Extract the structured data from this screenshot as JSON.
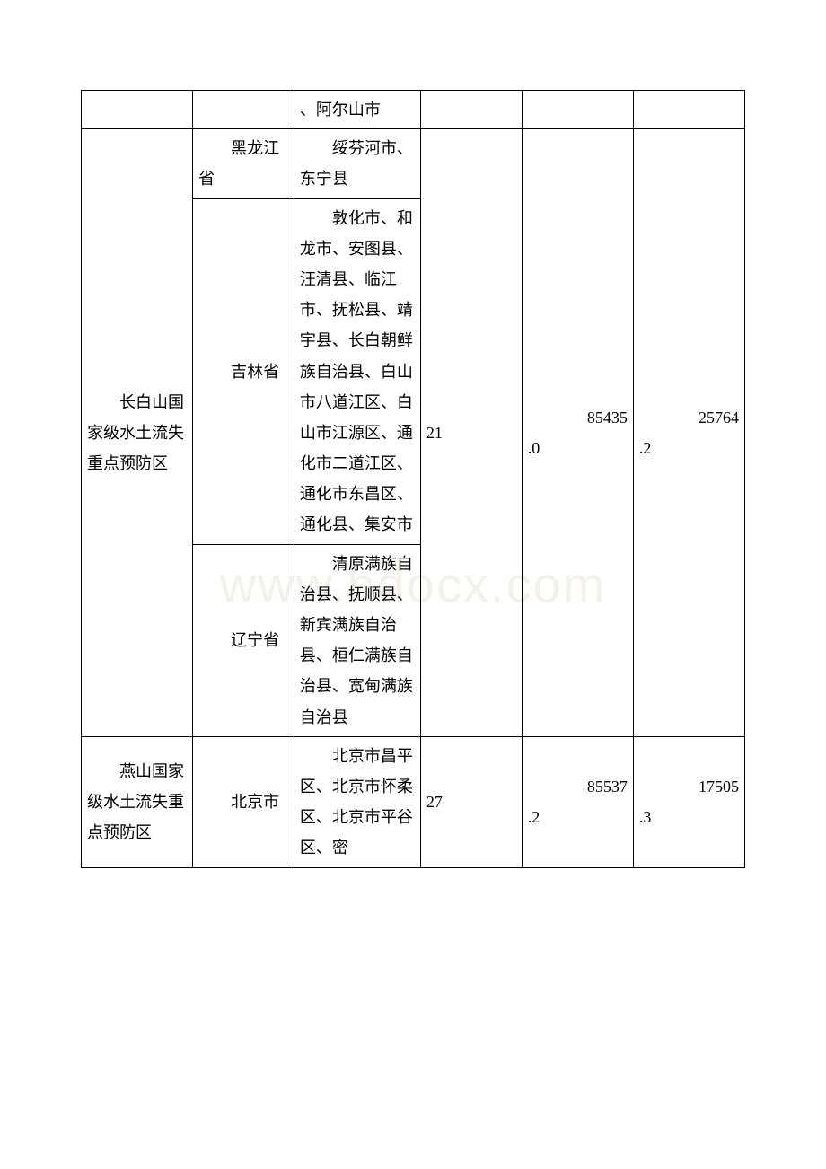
{
  "watermark": "www.bdocx.com",
  "rows": [
    {
      "col3": "、阿尔山市"
    },
    {
      "col1": "　　长白山国家级水土流失重点预防区",
      "col2": "　　黑龙江省",
      "col3": "　　绥芬河市、东宁县",
      "col4": "21",
      "col5a": "85435",
      "col5b": ".0",
      "col6a": "25764",
      "col6b": ".2"
    },
    {
      "col2": "　　吉林省",
      "col3": "　　敦化市、和龙市、安图县、汪清县、临江市、抚松县、靖宇县、长白朝鲜族自治县、白山市八道江区、白山市江源区、通化市二道江区、通化市东昌区、通化县、集安市"
    },
    {
      "col2": "　　辽宁省",
      "col3": "　　清原满族自治县、抚顺县、新宾满族自治县、桓仁满族自治县、宽甸满族自治县"
    },
    {
      "col1": "　　燕山国家级水土流失重点预防区",
      "col2": "　　北京市",
      "col3": "　　北京市昌平区、北京市怀柔区、北京市平谷区、密",
      "col4": "27",
      "col5a": "85537",
      "col5b": ".2",
      "col6a": "17505",
      "col6b": ".3"
    }
  ]
}
